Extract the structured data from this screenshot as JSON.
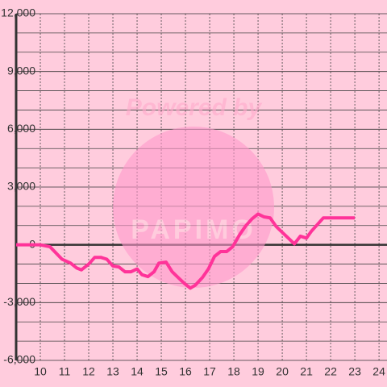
{
  "chart_data": {
    "type": "line",
    "annotations": [
      "Powered by",
      "PAPIMO"
    ],
    "x": [
      9,
      10,
      10.4,
      10.9,
      11.25,
      11.5,
      11.7,
      12.0,
      12.25,
      12.5,
      12.75,
      13.0,
      13.25,
      13.5,
      13.75,
      14.0,
      14.2,
      14.45,
      14.7,
      14.9,
      15.2,
      15.45,
      15.7,
      15.95,
      16.2,
      16.4,
      16.7,
      16.95,
      17.2,
      17.45,
      17.7,
      17.95,
      18.25,
      18.5,
      18.75,
      19.0,
      19.25,
      19.5,
      19.75,
      20.0,
      20.25,
      20.5,
      20.75,
      21.0,
      21.2,
      21.45,
      21.7,
      22.0,
      23.0
    ],
    "series": [
      {
        "color": "#ff3399",
        "values": [
          0,
          0,
          -100,
          -750,
          -950,
          -1200,
          -1300,
          -1000,
          -650,
          -650,
          -750,
          -1100,
          -1150,
          -1400,
          -1400,
          -1250,
          -1550,
          -1650,
          -1400,
          -950,
          -900,
          -1400,
          -1700,
          -2000,
          -2250,
          -2100,
          -1700,
          -1250,
          -600,
          -350,
          -350,
          -100,
          550,
          1000,
          1350,
          1600,
          1450,
          1400,
          950,
          650,
          350,
          50,
          450,
          350,
          700,
          1050,
          1400,
          1400,
          1400
        ]
      }
    ],
    "xlim": [
      9,
      24.33
    ],
    "xticks": [
      10,
      11,
      12,
      13,
      14,
      15,
      16,
      17,
      18,
      19,
      20,
      21,
      22,
      23,
      24
    ],
    "ylim": [
      -6000,
      12000
    ],
    "yticks": [
      {
        "value": -6000,
        "label": "-6,000"
      },
      {
        "value": -3000,
        "label": "-3,000"
      },
      0,
      {
        "value": 3000,
        "label": "3,000"
      },
      {
        "value": 6000,
        "label": "6,000"
      },
      {
        "value": 9000,
        "label": "9,000"
      },
      {
        "value": 12000,
        "label": "12,000"
      }
    ],
    "yminorticks": [
      -5000,
      -4000,
      -2000,
      -1000,
      1000,
      2000,
      4000,
      5000,
      7000,
      8000,
      10000,
      11000
    ],
    "grid": true
  }
}
